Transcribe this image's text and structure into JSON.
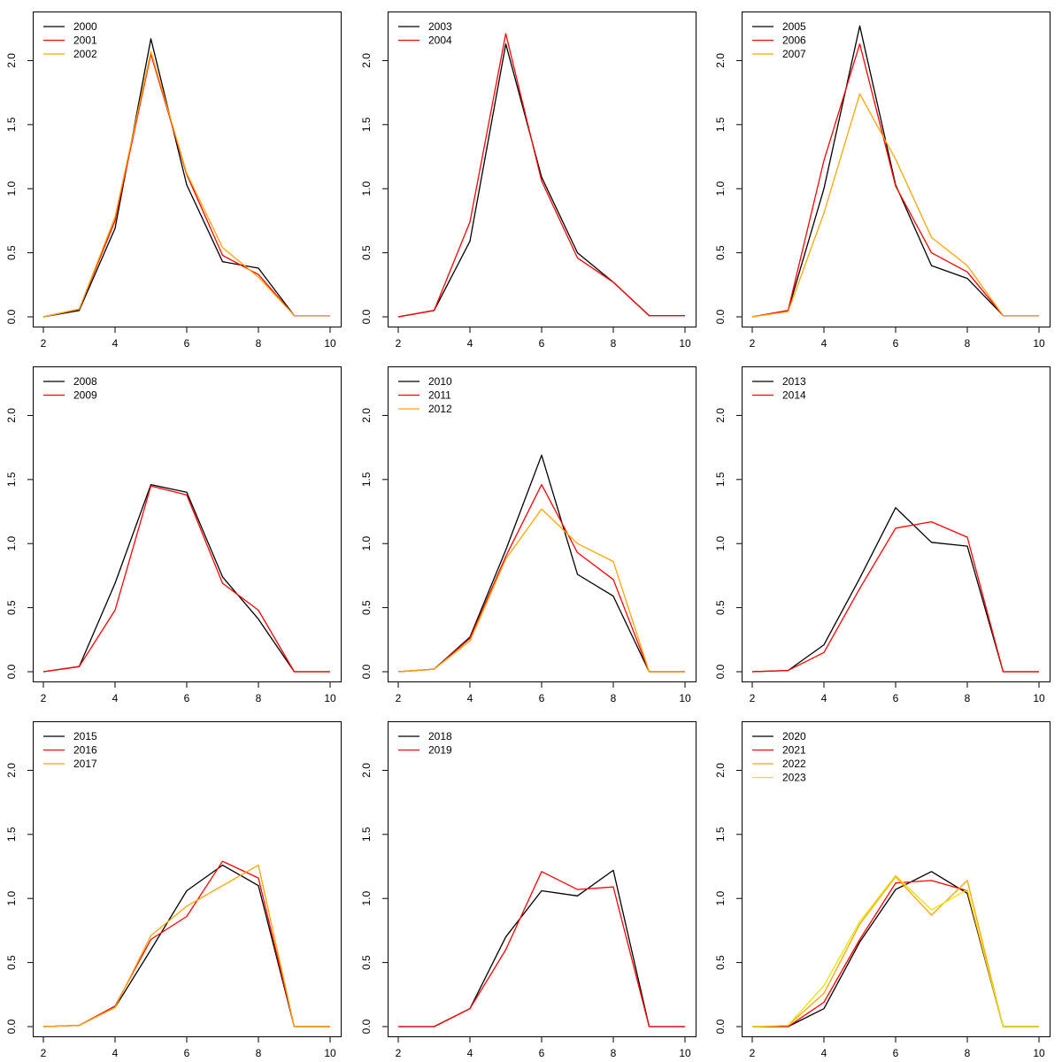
{
  "palette": [
    "#000000",
    "#ff0000",
    "#ffa500",
    "#e5e500"
  ],
  "chart_data": [
    {
      "type": "line",
      "xlim": [
        2,
        10
      ],
      "ylim": [
        0,
        2.3
      ],
      "x_ticks": [
        2,
        4,
        6,
        8,
        10
      ],
      "y_ticks": [
        0.0,
        0.5,
        1.0,
        1.5,
        2.0
      ],
      "legend_position": "top-left",
      "grid": false,
      "x": [
        2,
        3,
        4,
        5,
        6,
        7,
        8,
        9,
        10
      ],
      "series": [
        {
          "name": "2000",
          "values": [
            0.0,
            0.05,
            0.69,
            2.17,
            1.03,
            0.43,
            0.38,
            0.01,
            0.01
          ]
        },
        {
          "name": "2001",
          "values": [
            0.0,
            0.06,
            0.75,
            2.05,
            1.11,
            0.48,
            0.33,
            0.01,
            0.01
          ]
        },
        {
          "name": "2002",
          "values": [
            0.0,
            0.06,
            0.78,
            2.07,
            1.12,
            0.54,
            0.31,
            0.01,
            0.01
          ]
        }
      ]
    },
    {
      "type": "line",
      "xlim": [
        2,
        10
      ],
      "ylim": [
        0,
        2.3
      ],
      "x_ticks": [
        2,
        4,
        6,
        8,
        10
      ],
      "y_ticks": [
        0.0,
        0.5,
        1.0,
        1.5,
        2.0
      ],
      "legend_position": "top-left",
      "grid": false,
      "x": [
        2,
        3,
        4,
        5,
        6,
        7,
        8,
        9,
        10
      ],
      "series": [
        {
          "name": "2003",
          "values": [
            0.0,
            0.05,
            0.59,
            2.13,
            1.09,
            0.5,
            0.27,
            0.01,
            0.01
          ]
        },
        {
          "name": "2004",
          "values": [
            0.0,
            0.05,
            0.74,
            2.21,
            1.06,
            0.46,
            0.27,
            0.01,
            0.01
          ]
        }
      ]
    },
    {
      "type": "line",
      "xlim": [
        2,
        10
      ],
      "ylim": [
        0,
        2.3
      ],
      "x_ticks": [
        2,
        4,
        6,
        8,
        10
      ],
      "y_ticks": [
        0.0,
        0.5,
        1.0,
        1.5,
        2.0
      ],
      "legend_position": "top-left",
      "grid": false,
      "x": [
        2,
        3,
        4,
        5,
        6,
        7,
        8,
        9,
        10
      ],
      "series": [
        {
          "name": "2005",
          "values": [
            0.0,
            0.05,
            1.0,
            2.27,
            1.03,
            0.4,
            0.3,
            0.01,
            0.01
          ]
        },
        {
          "name": "2006",
          "values": [
            0.0,
            0.05,
            1.22,
            2.13,
            1.02,
            0.5,
            0.35,
            0.01,
            0.01
          ]
        },
        {
          "name": "2007",
          "values": [
            0.0,
            0.04,
            0.81,
            1.74,
            1.23,
            0.62,
            0.4,
            0.01,
            0.01
          ]
        }
      ]
    },
    {
      "type": "line",
      "xlim": [
        2,
        10
      ],
      "ylim": [
        0,
        2.3
      ],
      "x_ticks": [
        2,
        4,
        6,
        8,
        10
      ],
      "y_ticks": [
        0.0,
        0.5,
        1.0,
        1.5,
        2.0
      ],
      "legend_position": "top-left",
      "grid": false,
      "x": [
        2,
        3,
        4,
        5,
        6,
        7,
        8,
        9,
        10
      ],
      "series": [
        {
          "name": "2008",
          "values": [
            0.0,
            0.04,
            0.69,
            1.46,
            1.4,
            0.74,
            0.41,
            0.0,
            0.0
          ]
        },
        {
          "name": "2009",
          "values": [
            0.0,
            0.04,
            0.48,
            1.45,
            1.38,
            0.69,
            0.48,
            0.0,
            0.0
          ]
        }
      ]
    },
    {
      "type": "line",
      "xlim": [
        2,
        10
      ],
      "ylim": [
        0,
        2.3
      ],
      "x_ticks": [
        2,
        4,
        6,
        8,
        10
      ],
      "y_ticks": [
        0.0,
        0.5,
        1.0,
        1.5,
        2.0
      ],
      "legend_position": "top-left",
      "grid": false,
      "x": [
        2,
        3,
        4,
        5,
        6,
        7,
        8,
        9,
        10
      ],
      "series": [
        {
          "name": "2010",
          "values": [
            0.0,
            0.02,
            0.27,
            0.95,
            1.69,
            0.76,
            0.59,
            0.0,
            0.0
          ]
        },
        {
          "name": "2011",
          "values": [
            0.0,
            0.02,
            0.26,
            0.9,
            1.46,
            0.93,
            0.72,
            0.0,
            0.0
          ]
        },
        {
          "name": "2012",
          "values": [
            0.0,
            0.02,
            0.24,
            0.88,
            1.27,
            1.0,
            0.86,
            0.0,
            0.0
          ]
        }
      ]
    },
    {
      "type": "line",
      "xlim": [
        2,
        10
      ],
      "ylim": [
        0,
        2.3
      ],
      "x_ticks": [
        2,
        4,
        6,
        8,
        10
      ],
      "y_ticks": [
        0.0,
        0.5,
        1.0,
        1.5,
        2.0
      ],
      "legend_position": "top-left",
      "grid": false,
      "x": [
        2,
        3,
        4,
        5,
        6,
        7,
        8,
        9,
        10
      ],
      "series": [
        {
          "name": "2013",
          "values": [
            0.0,
            0.01,
            0.21,
            0.73,
            1.28,
            1.01,
            0.98,
            0.0,
            0.0
          ]
        },
        {
          "name": "2014",
          "values": [
            0.0,
            0.01,
            0.15,
            0.65,
            1.12,
            1.17,
            1.05,
            0.0,
            0.0
          ]
        }
      ]
    },
    {
      "type": "line",
      "xlim": [
        2,
        10
      ],
      "ylim": [
        0,
        2.3
      ],
      "x_ticks": [
        2,
        4,
        6,
        8,
        10
      ],
      "y_ticks": [
        0.0,
        0.5,
        1.0,
        1.5,
        2.0
      ],
      "legend_position": "top-left",
      "grid": false,
      "x": [
        2,
        3,
        4,
        5,
        6,
        7,
        8,
        9,
        10
      ],
      "series": [
        {
          "name": "2015",
          "values": [
            0.0,
            0.01,
            0.15,
            0.6,
            1.06,
            1.26,
            1.1,
            0.0,
            0.0
          ]
        },
        {
          "name": "2016",
          "values": [
            0.0,
            0.01,
            0.16,
            0.68,
            0.86,
            1.29,
            1.16,
            0.0,
            0.0
          ]
        },
        {
          "name": "2017",
          "values": [
            0.0,
            0.01,
            0.15,
            0.71,
            0.94,
            1.1,
            1.26,
            0.0,
            0.0
          ]
        }
      ]
    },
    {
      "type": "line",
      "xlim": [
        2,
        10
      ],
      "ylim": [
        0,
        2.3
      ],
      "x_ticks": [
        2,
        4,
        6,
        8,
        10
      ],
      "y_ticks": [
        0.0,
        0.5,
        1.0,
        1.5,
        2.0
      ],
      "legend_position": "top-left",
      "grid": false,
      "x": [
        2,
        3,
        4,
        5,
        6,
        7,
        8,
        9,
        10
      ],
      "series": [
        {
          "name": "2018",
          "values": [
            0.0,
            0.0,
            0.14,
            0.7,
            1.06,
            1.02,
            1.22,
            0.0,
            0.0
          ]
        },
        {
          "name": "2019",
          "values": [
            0.0,
            0.0,
            0.14,
            0.6,
            1.21,
            1.07,
            1.09,
            0.0,
            0.0
          ]
        }
      ]
    },
    {
      "type": "line",
      "xlim": [
        2,
        10
      ],
      "ylim": [
        0,
        2.3
      ],
      "x_ticks": [
        2,
        4,
        6,
        8,
        10
      ],
      "y_ticks": [
        0.0,
        0.5,
        1.0,
        1.5,
        2.0
      ],
      "legend_position": "top-left",
      "grid": false,
      "x": [
        2,
        3,
        4,
        5,
        6,
        7,
        8,
        9,
        10
      ],
      "series": [
        {
          "name": "2020",
          "values": [
            0.0,
            0.0,
            0.14,
            0.66,
            1.07,
            1.21,
            1.04,
            0.0,
            0.0
          ]
        },
        {
          "name": "2021",
          "values": [
            0.0,
            0.0,
            0.19,
            0.68,
            1.12,
            1.14,
            1.06,
            0.0,
            0.0
          ]
        },
        {
          "name": "2022",
          "values": [
            0.0,
            0.01,
            0.26,
            0.8,
            1.17,
            0.87,
            1.14,
            0.0,
            0.0
          ]
        },
        {
          "name": "2023",
          "values": [
            0.0,
            0.01,
            0.32,
            0.82,
            1.18,
            0.91,
            1.07,
            0.0,
            0.0
          ]
        }
      ]
    }
  ]
}
